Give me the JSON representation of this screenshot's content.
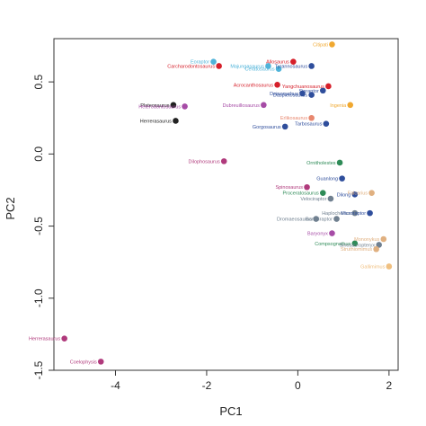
{
  "chart_data": {
    "type": "scatter",
    "title": "",
    "xlabel": "PC1",
    "ylabel": "PC2",
    "xlim": [
      -5.35,
      2.2
    ],
    "ylim": [
      -1.5,
      0.8
    ],
    "xticks": [
      -4,
      -2,
      0,
      2
    ],
    "xtick_labels": [
      "-4",
      "-2",
      "0",
      "2"
    ],
    "yticks": [
      -1.5,
      -1.0,
      -0.5,
      0.0,
      0.5
    ],
    "ytick_labels": [
      "-1.5",
      "-1.0",
      "-0.5",
      "0.0",
      "0.5"
    ],
    "grid": false,
    "points": [
      {
        "label": "Coelophysis",
        "x": -4.32,
        "y": -1.44,
        "color": "#b03a7c"
      },
      {
        "label": "Herrerasaurus",
        "x": -5.12,
        "y": -1.28,
        "color": "#b03a7c"
      },
      {
        "label": "Dilophosaurus",
        "x": -1.62,
        "y": -0.05,
        "color": "#b03a7c"
      },
      {
        "label": "Plateosaurus",
        "x": -2.73,
        "y": 0.34,
        "color": "#222222"
      },
      {
        "label": "Heterodontosaurus",
        "x": -2.48,
        "y": 0.33,
        "color": "#a64ca6"
      },
      {
        "label": "Herrerasaurus",
        "x": -2.68,
        "y": 0.23,
        "color": "#222222"
      },
      {
        "label": "Eoraptor",
        "x": -1.85,
        "y": 0.64,
        "color": "#4fb3d9"
      },
      {
        "label": "Carcharodontosaurus",
        "x": -1.73,
        "y": 0.61,
        "color": "#d61f2a"
      },
      {
        "label": "Majungasaurus",
        "x": -0.65,
        "y": 0.61,
        "color": "#4fb3d9"
      },
      {
        "label": "Ceratosaurus",
        "x": -0.42,
        "y": 0.59,
        "color": "#4fb3d9"
      },
      {
        "label": "Allosaurus",
        "x": -0.1,
        "y": 0.64,
        "color": "#d61f2a"
      },
      {
        "label": "Tyrannosaurus",
        "x": 0.3,
        "y": 0.61,
        "color": "#2f4e9c"
      },
      {
        "label": "Citipati",
        "x": 0.75,
        "y": 0.76,
        "color": "#f0a830"
      },
      {
        "label": "Acrocanthosaurus",
        "x": -0.45,
        "y": 0.48,
        "color": "#d61f2a"
      },
      {
        "label": "Yangchuanosaurus",
        "x": 0.67,
        "y": 0.47,
        "color": "#d61f2a"
      },
      {
        "label": "Sinraptor",
        "x": 0.55,
        "y": 0.44,
        "color": "#2f4e9c"
      },
      {
        "label": "Deinonychus",
        "x": 0.1,
        "y": 0.42,
        "color": "#2f4e9c"
      },
      {
        "label": "Daspletosaurus",
        "x": 0.3,
        "y": 0.41,
        "color": "#2f4e9c"
      },
      {
        "label": "Dubreuillosaurus",
        "x": -0.75,
        "y": 0.34,
        "color": "#a64ca6"
      },
      {
        "label": "Ingenia",
        "x": 1.15,
        "y": 0.34,
        "color": "#f0a830"
      },
      {
        "label": "Erlikosaurus",
        "x": 0.3,
        "y": 0.25,
        "color": "#e8876e"
      },
      {
        "label": "Tarbosaurus",
        "x": 0.62,
        "y": 0.21,
        "color": "#2f4e9c"
      },
      {
        "label": "Gorgosaurus",
        "x": -0.28,
        "y": 0.19,
        "color": "#2f4e9c"
      },
      {
        "label": "Ornitholestes",
        "x": 0.92,
        "y": -0.06,
        "color": "#2e8b57"
      },
      {
        "label": "Guanlong",
        "x": 0.97,
        "y": -0.17,
        "color": "#2f4e9c"
      },
      {
        "label": "Spinosaurus",
        "x": 0.2,
        "y": -0.23,
        "color": "#b03a7c"
      },
      {
        "label": "Proceratosaurus",
        "x": 0.55,
        "y": -0.27,
        "color": "#2e8b57"
      },
      {
        "label": "Velociraptor",
        "x": 0.72,
        "y": -0.31,
        "color": "#708090"
      },
      {
        "label": "Dilong",
        "x": 1.25,
        "y": -0.28,
        "color": "#2f4e9c"
      },
      {
        "label": "Falcarius",
        "x": 1.62,
        "y": -0.27,
        "color": "#e0b080"
      },
      {
        "label": "Dromaeosaurus",
        "x": 0.4,
        "y": -0.45,
        "color": "#708090"
      },
      {
        "label": "Haplocheirus",
        "x": 1.25,
        "y": -0.41,
        "color": "#708090"
      },
      {
        "label": "Microraptor",
        "x": 1.58,
        "y": -0.41,
        "color": "#2f4e9c"
      },
      {
        "label": "Bambiraptor",
        "x": 0.85,
        "y": -0.45,
        "color": "#708090"
      },
      {
        "label": "Baryonyx",
        "x": 0.75,
        "y": -0.55,
        "color": "#a64ca6"
      },
      {
        "label": "Compsognathus",
        "x": 1.25,
        "y": -0.62,
        "color": "#2e8b57"
      },
      {
        "label": "Sinosauropteryx",
        "x": 1.78,
        "y": -0.63,
        "color": "#708090"
      },
      {
        "label": "Mononykus",
        "x": 1.88,
        "y": -0.59,
        "color": "#e0b080"
      },
      {
        "label": "Struthiomimus",
        "x": 1.72,
        "y": -0.66,
        "color": "#e0b080"
      },
      {
        "label": "Gallimimus",
        "x": 2.0,
        "y": -0.78,
        "color": "#f0c080"
      }
    ]
  }
}
